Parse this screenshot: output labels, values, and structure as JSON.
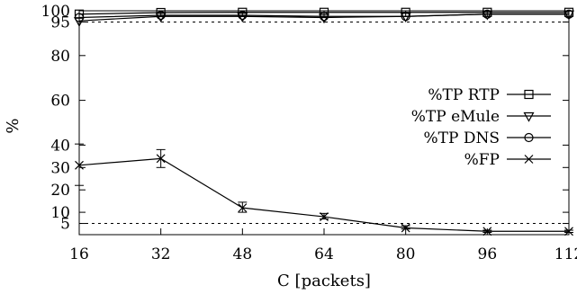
{
  "chart_data": {
    "type": "line",
    "xlabel": "C [packets]",
    "ylabel": "%",
    "x": [
      16,
      32,
      48,
      64,
      80,
      96,
      112
    ],
    "xlim": [
      16,
      112
    ],
    "ylim": [
      0,
      100
    ],
    "xticks": [
      16,
      32,
      48,
      64,
      80,
      96,
      112
    ],
    "yticks": [
      5,
      10,
      20,
      30,
      40,
      60,
      80,
      95,
      100
    ],
    "grid": false,
    "legend_position": "right",
    "reference_lines": [
      95,
      5
    ],
    "series": [
      {
        "name": "%TP RTP",
        "marker": "square",
        "values": [
          98.5,
          99.2,
          99.3,
          99.3,
          99.3,
          99.3,
          99.3
        ]
      },
      {
        "name": "%TP eMule",
        "marker": "triangle-down",
        "values": [
          95.5,
          97.5,
          97.5,
          97.0,
          97.5,
          98.5,
          98.5
        ]
      },
      {
        "name": "%TP DNS",
        "marker": "circle",
        "values": [
          97.0,
          98.0,
          98.0,
          97.5,
          97.5,
          98.5,
          98.5
        ]
      },
      {
        "name": "%FP",
        "marker": "x",
        "values": [
          31,
          34,
          12,
          8,
          3,
          1.5,
          1.5
        ],
        "error_bars": [
          [
            22,
            40.5
          ],
          [
            30,
            38
          ],
          [
            10,
            14.5
          ],
          [
            7,
            9.5
          ],
          [
            2.5,
            4
          ],
          [
            1,
            2
          ],
          [
            1,
            2
          ]
        ]
      }
    ]
  }
}
